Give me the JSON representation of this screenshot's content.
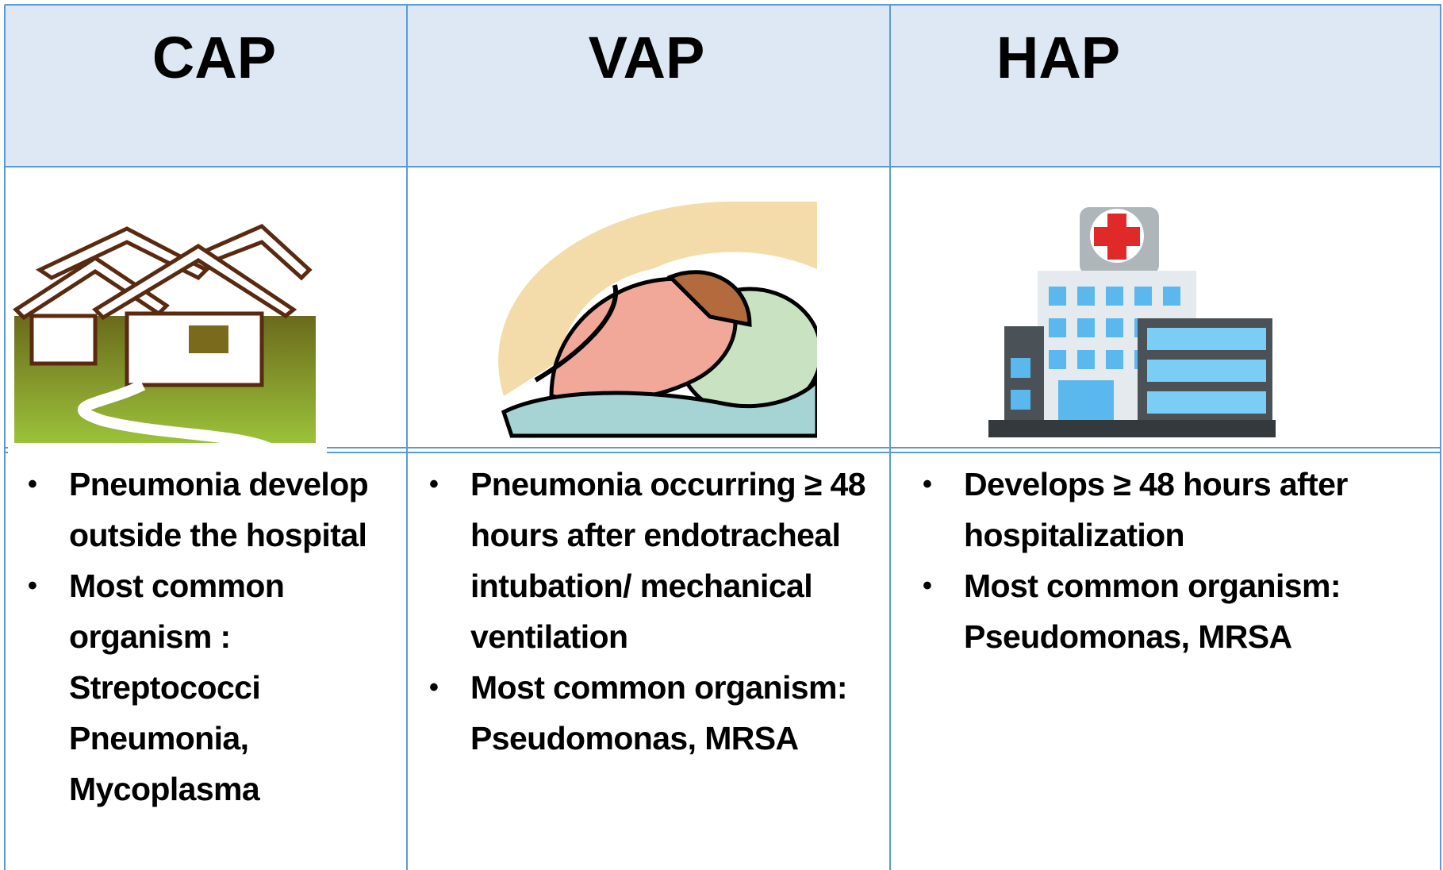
{
  "table": {
    "headers": [
      "CAP",
      "VAP",
      "HAP"
    ],
    "cells": [
      [
        "Pneumonia develop outside the hospital",
        "Most common organism : Streptococci Pneumonia, Mycoplasma"
      ],
      [
        "Pneumonia occurring ≥ 48 hours after endotracheal intubation/ mechanical ventilation",
        "Most common organism: Pseudomonas, MRSA"
      ],
      [
        "Develops ≥ 48 hours after hospitalization",
        "Most common organism: Pseudomonas, MRSA"
      ]
    ]
  }
}
